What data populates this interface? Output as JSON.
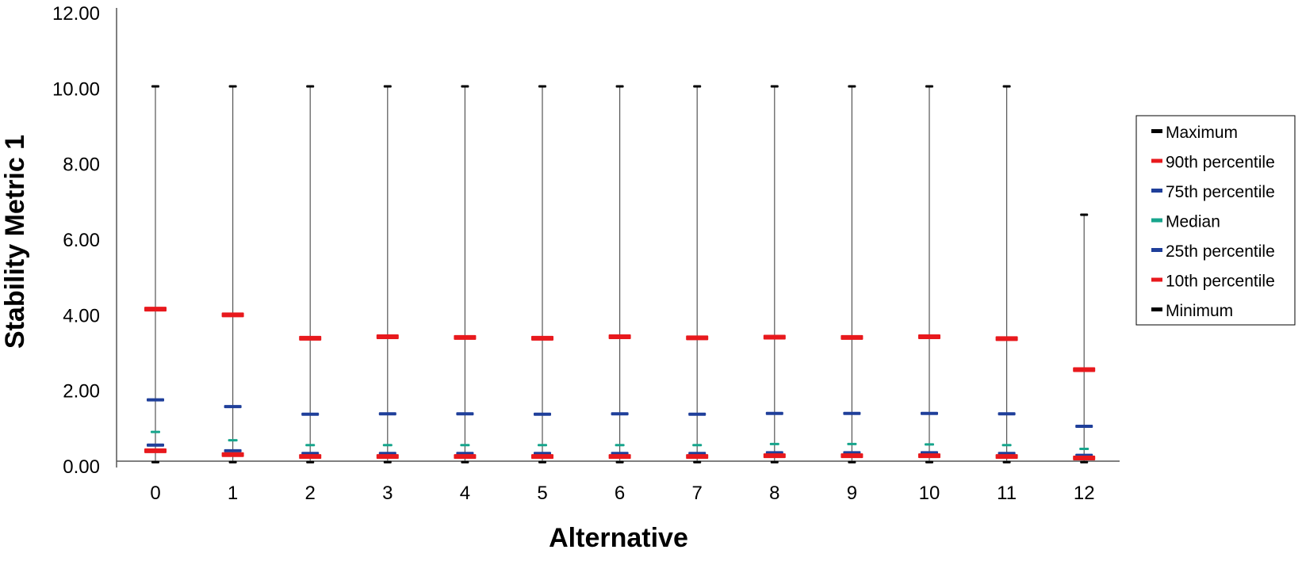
{
  "chart_data": {
    "type": "stock",
    "xlabel": "Alternative",
    "ylabel": "Stability Metric 1",
    "ylim": [
      0,
      12
    ],
    "yticks": [
      "0.00",
      "2.00",
      "4.00",
      "6.00",
      "8.00",
      "10.00",
      "12.00"
    ],
    "categories": [
      "0",
      "1",
      "2",
      "3",
      "4",
      "5",
      "6",
      "7",
      "8",
      "9",
      "10",
      "11",
      "12"
    ],
    "legend_position": "right",
    "series": [
      {
        "name": "Maximum",
        "color": "#000000",
        "values": [
          10.05,
          10.05,
          10.05,
          10.05,
          10.05,
          10.05,
          10.05,
          10.05,
          10.05,
          10.05,
          10.05,
          10.05,
          6.65
        ]
      },
      {
        "name": "90th percentile",
        "color": "#e8191d",
        "values": [
          4.15,
          4.0,
          3.38,
          3.42,
          3.4,
          3.38,
          3.42,
          3.39,
          3.41,
          3.4,
          3.42,
          3.37,
          2.55
        ]
      },
      {
        "name": "75th percentile",
        "color": "#1f3f9a",
        "values": [
          1.75,
          1.57,
          1.37,
          1.38,
          1.38,
          1.37,
          1.38,
          1.37,
          1.39,
          1.39,
          1.39,
          1.38,
          1.05
        ]
      },
      {
        "name": "Median",
        "color": "#17a58c",
        "values": [
          0.9,
          0.68,
          0.55,
          0.55,
          0.55,
          0.55,
          0.55,
          0.55,
          0.58,
          0.58,
          0.57,
          0.55,
          0.45
        ]
      },
      {
        "name": "25th percentile",
        "color": "#1f3f9a",
        "values": [
          0.55,
          0.4,
          0.33,
          0.33,
          0.33,
          0.33,
          0.33,
          0.33,
          0.35,
          0.35,
          0.35,
          0.33,
          0.28
        ]
      },
      {
        "name": "10th percentile",
        "color": "#e8191d",
        "values": [
          0.4,
          0.3,
          0.25,
          0.25,
          0.25,
          0.25,
          0.25,
          0.25,
          0.27,
          0.27,
          0.27,
          0.25,
          0.21
        ]
      },
      {
        "name": "Minimum",
        "color": "#000000",
        "values": [
          0.1,
          0.1,
          0.1,
          0.1,
          0.1,
          0.1,
          0.1,
          0.1,
          0.1,
          0.1,
          0.1,
          0.1,
          0.1
        ]
      }
    ]
  }
}
